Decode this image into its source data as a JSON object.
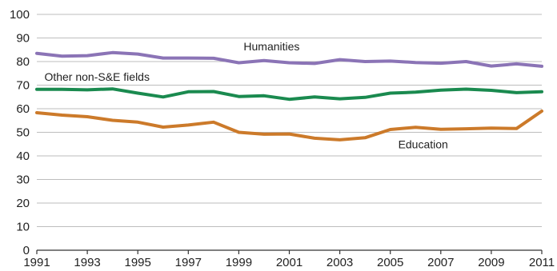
{
  "chart_data": {
    "type": "line",
    "title": "",
    "xlabel": "",
    "ylabel": "",
    "x": [
      1991,
      1992,
      1993,
      1994,
      1995,
      1996,
      1997,
      1998,
      1999,
      2000,
      2001,
      2002,
      2003,
      2004,
      2005,
      2006,
      2007,
      2008,
      2009,
      2010,
      2011
    ],
    "xticks": [
      1991,
      1993,
      1995,
      1997,
      1999,
      2001,
      2003,
      2005,
      2007,
      2009,
      2011
    ],
    "yticks": [
      0,
      10,
      20,
      30,
      40,
      50,
      60,
      70,
      80,
      90,
      100
    ],
    "xlim": [
      1991,
      2011
    ],
    "ylim": [
      0,
      100
    ],
    "grid": "horizontal",
    "series": [
      {
        "name": "Humanities",
        "color": "#8b74b6",
        "values": [
          83.5,
          82.3,
          82.5,
          83.8,
          83.2,
          81.5,
          81.5,
          81.4,
          79.5,
          80.4,
          79.5,
          79.2,
          80.8,
          80.0,
          80.2,
          79.6,
          79.3,
          80.0,
          78.1,
          79.0,
          78.0
        ]
      },
      {
        "name": "Other non-S&E fields",
        "color": "#1a8a4f",
        "values": [
          68.2,
          68.2,
          68.0,
          68.4,
          66.6,
          65.0,
          67.2,
          67.3,
          65.2,
          65.5,
          64.0,
          65.0,
          64.2,
          64.8,
          66.6,
          67.0,
          67.9,
          68.3,
          67.8,
          66.8,
          67.2
        ]
      },
      {
        "name": "Education",
        "color": "#cc7a2a",
        "values": [
          58.3,
          57.3,
          56.6,
          55.1,
          54.3,
          52.2,
          53.1,
          54.3,
          50.0,
          49.2,
          49.3,
          47.5,
          46.8,
          47.7,
          51.2,
          52.1,
          51.3,
          51.5,
          51.8,
          51.6,
          59.0
        ]
      }
    ]
  }
}
